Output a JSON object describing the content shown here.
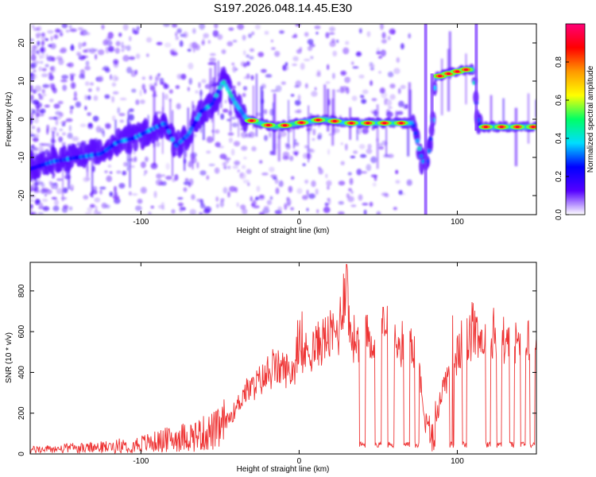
{
  "title": "S197.2026.048.14.45.E30",
  "chart_data": [
    {
      "type": "heatmap",
      "xlabel": "Height of straight line (km)",
      "ylabel": "Frequency (Hz)",
      "xlim": [
        -170,
        150
      ],
      "ylim": [
        -25,
        25
      ],
      "xticks": [
        -100,
        0,
        100
      ],
      "yticks": [
        -20,
        -10,
        0,
        10,
        20
      ],
      "ridge": {
        "x": [
          -170,
          -155,
          -140,
          -125,
          -115,
          -105,
          -95,
          -85,
          -78,
          -70,
          -62,
          -55,
          -48,
          -40,
          -33,
          -25,
          -15,
          0,
          15,
          30,
          45,
          60,
          72,
          78,
          81,
          84,
          86,
          95,
          105,
          110,
          113,
          115,
          125,
          140,
          150
        ],
        "y": [
          -13,
          -11,
          -10,
          -9,
          -6,
          -5,
          -3,
          -1,
          -7,
          -4,
          2,
          4,
          10,
          4,
          0,
          -1,
          -2,
          -1,
          0,
          -1,
          -1,
          -1,
          -1,
          -11,
          -11,
          -3,
          11,
          12,
          13,
          13,
          0,
          -2,
          -2,
          -2,
          -2
        ]
      },
      "colorbar": {
        "label": "Normalized spectral amplitude",
        "ticks": [
          0.0,
          0.2,
          0.4,
          0.6,
          0.8
        ],
        "tick_labels": [
          "0.0",
          "0.2",
          "0.4",
          "0.6",
          "0.8"
        ],
        "colors": [
          "#ffffff",
          "#5500ff",
          "#0000ff",
          "#00ddff",
          "#00ff66",
          "#ffff00",
          "#ff9900",
          "#ff0000",
          "#ff0077"
        ]
      }
    },
    {
      "type": "line",
      "xlabel": "Height of straight line (km)",
      "ylabel": "SNR (10 * v/v)",
      "xlim": [
        -170,
        150
      ],
      "ylim": [
        0,
        940
      ],
      "xticks": [
        -100,
        0,
        100
      ],
      "yticks": [
        0,
        200,
        400,
        600,
        800
      ],
      "series": [
        {
          "name": "SNR",
          "color": "#ee3333",
          "x": [
            -170,
            -150,
            -130,
            -110,
            -90,
            -75,
            -60,
            -50,
            -40,
            -35,
            -30,
            -25,
            -20,
            -15,
            -10,
            -5,
            0,
            5,
            10,
            15,
            20,
            25,
            28,
            30,
            32,
            35,
            38,
            40,
            45,
            50,
            55,
            60,
            65,
            70,
            75,
            80,
            85,
            90,
            95,
            100,
            105,
            110,
            112,
            115,
            120,
            130,
            140,
            150
          ],
          "y": [
            20,
            25,
            30,
            40,
            60,
            80,
            100,
            120,
            220,
            300,
            320,
            360,
            380,
            420,
            420,
            400,
            470,
            500,
            520,
            560,
            580,
            600,
            780,
            860,
            600,
            560,
            580,
            560,
            570,
            560,
            550,
            540,
            540,
            540,
            520,
            120,
            100,
            300,
            420,
            480,
            560,
            560,
            620,
            560,
            570,
            560,
            550,
            560
          ]
        }
      ],
      "dropouts": [
        [
          38,
          42
        ],
        [
          48,
          52
        ],
        [
          56,
          60
        ],
        [
          66,
          70
        ],
        [
          73,
          76
        ],
        [
          95,
          98
        ],
        [
          103,
          106
        ],
        [
          118,
          121
        ],
        [
          125,
          128
        ],
        [
          133,
          136
        ],
        [
          140,
          143
        ],
        [
          146,
          149
        ]
      ],
      "dropout_level": 45,
      "peaks": [
        {
          "x": 30,
          "y": 930
        },
        {
          "x": 110,
          "y": 740
        },
        {
          "x": 97,
          "y": 680
        },
        {
          "x": 53,
          "y": 720
        }
      ]
    }
  ]
}
